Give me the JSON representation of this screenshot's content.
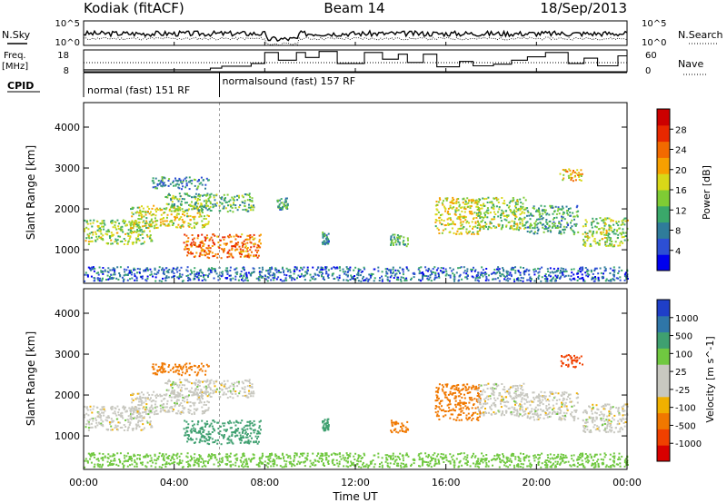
{
  "header": {
    "station": "Kodiak (fitACF)",
    "beam": "Beam 14",
    "date": "18/Sep/2013"
  },
  "noise_panel": {
    "left_label": "N.Sky",
    "right_label": "N.Search",
    "left_ticks": [
      "10^5",
      "10^0"
    ],
    "right_ticks": [
      "10^5",
      "10^0"
    ]
  },
  "freq_panel": {
    "left_label_line1": "Freq.",
    "left_label_line2": "[MHz]",
    "right_label": "Nave",
    "left_ticks": [
      "18",
      "8"
    ],
    "right_ticks": [
      "60",
      "0"
    ],
    "nave_steps": [
      [
        0,
        3
      ],
      [
        5.6,
        3
      ],
      [
        5.6,
        8
      ],
      [
        6.1,
        8
      ],
      [
        6.1,
        14
      ],
      [
        7.4,
        14
      ],
      [
        7.4,
        22
      ],
      [
        8.0,
        22
      ],
      [
        8.0,
        55
      ],
      [
        8.6,
        55
      ],
      [
        8.6,
        32
      ],
      [
        9.4,
        32
      ],
      [
        9.4,
        55
      ],
      [
        9.8,
        55
      ],
      [
        9.8,
        40
      ],
      [
        10.4,
        40
      ],
      [
        10.4,
        58
      ],
      [
        11.2,
        58
      ],
      [
        11.2,
        22
      ],
      [
        12.4,
        22
      ],
      [
        12.4,
        55
      ],
      [
        13.2,
        55
      ],
      [
        13.2,
        35
      ],
      [
        13.9,
        35
      ],
      [
        13.9,
        50
      ],
      [
        14.3,
        50
      ],
      [
        14.3,
        25
      ],
      [
        15.0,
        25
      ],
      [
        15.0,
        50
      ],
      [
        15.6,
        50
      ],
      [
        15.6,
        12
      ],
      [
        16.6,
        12
      ],
      [
        16.6,
        28
      ],
      [
        17.2,
        28
      ],
      [
        17.2,
        15
      ],
      [
        18.1,
        15
      ],
      [
        18.1,
        20
      ],
      [
        18.9,
        20
      ],
      [
        18.9,
        32
      ],
      [
        19.6,
        32
      ],
      [
        19.6,
        42
      ],
      [
        20.4,
        42
      ],
      [
        20.4,
        55
      ],
      [
        21.4,
        55
      ],
      [
        21.4,
        22
      ],
      [
        22.1,
        22
      ],
      [
        22.1,
        38
      ],
      [
        22.7,
        38
      ],
      [
        22.7,
        15
      ],
      [
        23.6,
        15
      ],
      [
        23.6,
        45
      ],
      [
        24,
        45
      ]
    ]
  },
  "cpid": {
    "label": "CPID",
    "segments": [
      {
        "text": "normal (fast) 151 RF",
        "start": 0,
        "end": 6
      },
      {
        "text": "normalsound (fast) 157 RF",
        "start": 6,
        "end": 24
      }
    ]
  },
  "colorbars": {
    "power": {
      "label": "Power [dB]",
      "ticks": [
        "28",
        "24",
        "20",
        "16",
        "12",
        "8",
        "4"
      ],
      "colors": [
        "#0000ee",
        "#2d4fd4",
        "#2f7c9a",
        "#3aa86a",
        "#7fcc34",
        "#d8d818",
        "#f7a000",
        "#f26a00",
        "#e82800",
        "#cc0000"
      ]
    },
    "velocity": {
      "label": "Velocity [m s^-1]",
      "ticks": [
        "1000",
        "500",
        "100",
        "25",
        "-25",
        "-100",
        "-500",
        "-1000"
      ],
      "colors": [
        "#1f3fc8",
        "#2f76a8",
        "#3fa070",
        "#70c840",
        "#c8c8c0",
        "#c8c8c0",
        "#f0b000",
        "#f07800",
        "#f04000",
        "#d80000"
      ]
    }
  },
  "chart_data": {
    "type": "heatmap",
    "xlabel": "Time UT",
    "ylabel": "Slant Range [km]",
    "x_ticks": [
      "00:00",
      "04:00",
      "08:00",
      "12:00",
      "16:00",
      "20:00",
      "00:00"
    ],
    "y_ticks": [
      "1000",
      "2000",
      "3000",
      "4000"
    ],
    "xlim": [
      0,
      24
    ],
    "ylim": [
      180,
      4600
    ],
    "mode_change_time": 6.0,
    "power_panel": {
      "quantity": "Power [dB]",
      "echo_regions": [
        {
          "t0": 0.0,
          "t1": 3.0,
          "r0": 1150,
          "r1": 1750,
          "value": 14
        },
        {
          "t0": 2.0,
          "t1": 5.5,
          "r0": 1550,
          "r1": 2100,
          "value": 16
        },
        {
          "t0": 3.5,
          "t1": 7.5,
          "r0": 1950,
          "r1": 2400,
          "value": 12
        },
        {
          "t0": 4.4,
          "t1": 7.8,
          "r0": 820,
          "r1": 1400,
          "value": 22
        },
        {
          "t0": 3.0,
          "t1": 5.5,
          "r0": 2500,
          "r1": 2800,
          "value": 8
        },
        {
          "t0": 8.5,
          "t1": 9.0,
          "r0": 2000,
          "r1": 2300,
          "value": 10
        },
        {
          "t0": 10.5,
          "t1": 10.8,
          "r0": 1150,
          "r1": 1450,
          "value": 8
        },
        {
          "t0": 13.5,
          "t1": 14.3,
          "r0": 1100,
          "r1": 1400,
          "value": 10
        },
        {
          "t0": 15.5,
          "t1": 17.5,
          "r0": 1400,
          "r1": 2300,
          "value": 16
        },
        {
          "t0": 17.3,
          "t1": 19.5,
          "r0": 1500,
          "r1": 2300,
          "value": 14
        },
        {
          "t0": 19.5,
          "t1": 21.8,
          "r0": 1400,
          "r1": 2100,
          "value": 10
        },
        {
          "t0": 22.0,
          "t1": 24.0,
          "r0": 1100,
          "r1": 1800,
          "value": 14
        },
        {
          "t0": 21.0,
          "t1": 22.0,
          "r0": 2700,
          "r1": 3000,
          "value": 18
        },
        {
          "t0": 0.0,
          "t1": 24.0,
          "r0": 250,
          "r1": 600,
          "value": 6
        }
      ]
    },
    "velocity_panel": {
      "quantity": "Velocity [m s^-1]",
      "echo_regions": [
        {
          "t0": 0.0,
          "t1": 3.0,
          "r0": 1150,
          "r1": 1750,
          "value": 0
        },
        {
          "t0": 2.0,
          "t1": 5.5,
          "r0": 1550,
          "r1": 2100,
          "value": 0
        },
        {
          "t0": 3.5,
          "t1": 7.5,
          "r0": 1950,
          "r1": 2400,
          "value": 0
        },
        {
          "t0": 4.4,
          "t1": 7.8,
          "r0": 820,
          "r1": 1400,
          "value": 150
        },
        {
          "t0": 3.0,
          "t1": 5.5,
          "r0": 2500,
          "r1": 2800,
          "value": -300
        },
        {
          "t0": 10.5,
          "t1": 10.8,
          "r0": 1150,
          "r1": 1450,
          "value": 200
        },
        {
          "t0": 13.5,
          "t1": 14.3,
          "r0": 1100,
          "r1": 1400,
          "value": -400
        },
        {
          "t0": 15.5,
          "t1": 17.5,
          "r0": 1400,
          "r1": 2300,
          "value": -400
        },
        {
          "t0": 17.3,
          "t1": 19.5,
          "r0": 1500,
          "r1": 2300,
          "value": 0
        },
        {
          "t0": 19.5,
          "t1": 21.8,
          "r0": 1400,
          "r1": 2100,
          "value": 0
        },
        {
          "t0": 22.0,
          "t1": 24.0,
          "r0": 1100,
          "r1": 1800,
          "value": 0
        },
        {
          "t0": 21.0,
          "t1": 22.0,
          "r0": 2700,
          "r1": 3000,
          "value": -700
        },
        {
          "t0": 0.0,
          "t1": 24.0,
          "r0": 250,
          "r1": 600,
          "value": 60
        }
      ]
    }
  }
}
